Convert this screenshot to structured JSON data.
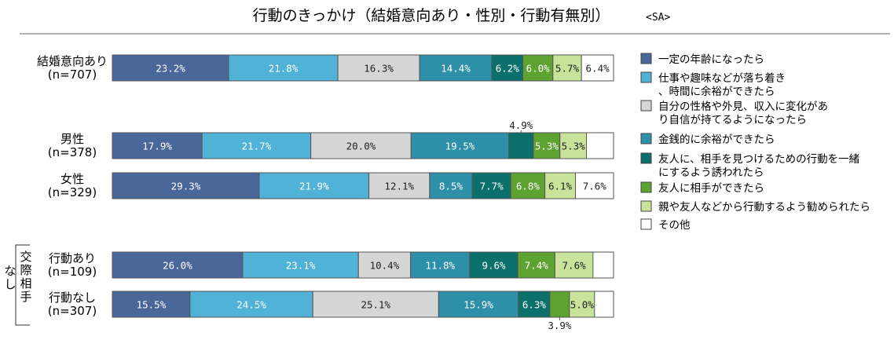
{
  "chart_data": {
    "type": "bar",
    "stacked": "100%",
    "orientation": "horizontal",
    "title": "行動のきっかけ（結婚意向あり・性別・行動有無別）",
    "title_tag": "<SA>",
    "group_label": "交際相手なし",
    "categories": [
      {
        "name": "結婚意向あり",
        "n": "(n=707)"
      },
      {
        "name": "男性",
        "n": "(n=378)"
      },
      {
        "name": "女性",
        "n": "(n=329)"
      },
      {
        "name": "行動あり",
        "n": "(n=109)"
      },
      {
        "name": "行動なし",
        "n": "(n=307)"
      }
    ],
    "series": [
      {
        "name": "一定の年齢になったら",
        "color": "#4a6799",
        "values": [
          23.2,
          17.9,
          29.3,
          26.0,
          15.5
        ]
      },
      {
        "name": "仕事や趣味などが落ち着き、時間に余裕ができたら",
        "color": "#4fb2d6",
        "values": [
          21.8,
          21.7,
          21.9,
          23.1,
          24.5
        ]
      },
      {
        "name": "自分の性格や外見、収入に変化があり自信が持てるようになったら",
        "color": "#d6d6d6",
        "values": [
          16.3,
          20.0,
          12.1,
          10.4,
          25.1
        ]
      },
      {
        "name": "金銭的に余裕ができたら",
        "color": "#2e8fa8",
        "values": [
          14.4,
          19.5,
          8.5,
          11.8,
          15.9
        ]
      },
      {
        "name": "友人に、相手を見つけるための行動を一緒にするよう誘われたら",
        "color": "#0b6f6b",
        "values": [
          6.2,
          4.9,
          7.7,
          9.6,
          6.3
        ]
      },
      {
        "name": "友人に相手ができたら",
        "color": "#5ea232",
        "values": [
          6.0,
          5.3,
          6.8,
          7.4,
          3.9
        ]
      },
      {
        "name": "親や友人などから行動するよう勧められたら",
        "color": "#c9e39a",
        "values": [
          5.7,
          5.3,
          6.1,
          7.6,
          5.0
        ]
      },
      {
        "name": "その他",
        "color": "#ffffff",
        "values": [
          6.4,
          null,
          7.6,
          null,
          null
        ]
      }
    ],
    "legend_position": "right",
    "xlim": [
      0,
      100
    ]
  }
}
